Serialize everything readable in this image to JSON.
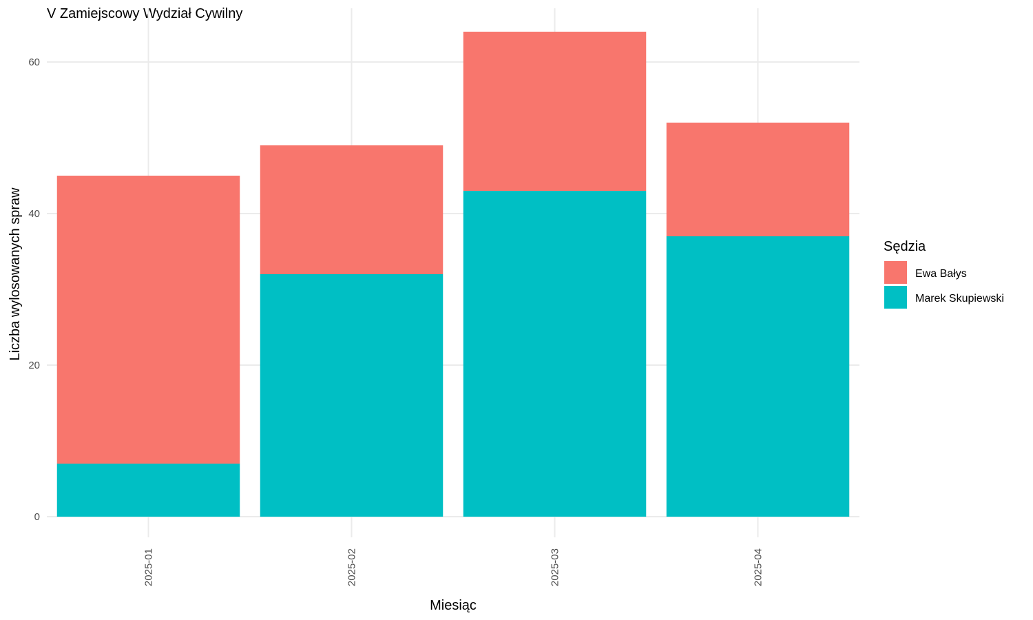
{
  "chart_data": {
    "type": "bar",
    "stacked": true,
    "title": "V Zamiejscowy Wydział Cywilny",
    "xlabel": "Miesiąc",
    "ylabel": "Liczba wylosowanych spraw",
    "categories": [
      "2025-01",
      "2025-02",
      "2025-03",
      "2025-04"
    ],
    "series": [
      {
        "name": "Marek Skupiewski",
        "color": "#00BFC4",
        "values": [
          7,
          32,
          43,
          37
        ]
      },
      {
        "name": "Ewa Bałys",
        "color": "#F8766D",
        "values": [
          38,
          17,
          21,
          15
        ]
      }
    ],
    "ylim": [
      0,
      65
    ],
    "yticks": [
      0,
      20,
      40,
      60
    ],
    "grid": true,
    "legend": {
      "title": "Sędzia",
      "position": "right",
      "entries": [
        {
          "label": "Ewa Bałys",
          "color": "#F8766D"
        },
        {
          "label": "Marek Skupiewski",
          "color": "#00BFC4"
        }
      ]
    }
  }
}
